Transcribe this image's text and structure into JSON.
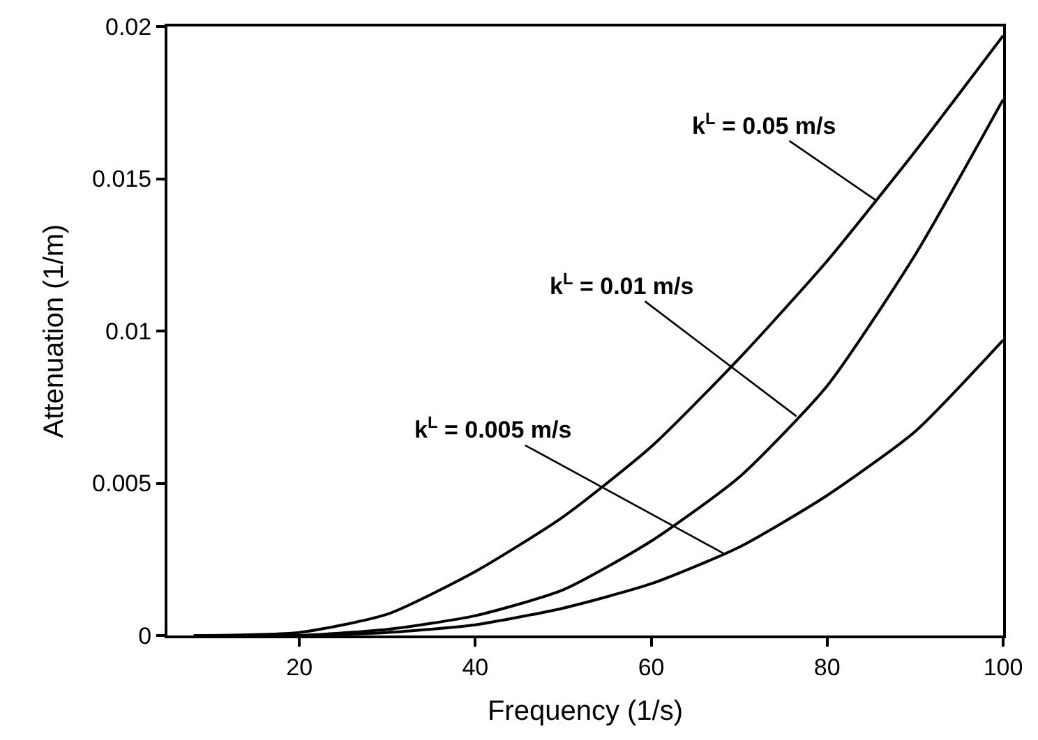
{
  "chart_data": {
    "type": "line",
    "xlabel": "Frequency (1/s)",
    "ylabel": "Attenuation (1/m)",
    "x": [
      8,
      20,
      30,
      40,
      50,
      60,
      70,
      80,
      90,
      100
    ],
    "series": [
      {
        "color": "#000000",
        "values": [
          0,
          0.0001,
          0.0007,
          0.0021,
          0.0039,
          0.0062,
          0.0091,
          0.0123,
          0.0159,
          0.0197
        ]
      },
      {
        "color": "#000000",
        "values": [
          0,
          0,
          0.0002,
          0.00065,
          0.0015,
          0.0031,
          0.0052,
          0.0082,
          0.0125,
          0.0176
        ]
      },
      {
        "color": "#000000",
        "values": [
          0,
          0,
          0.0001,
          0.00035,
          0.0009,
          0.0017,
          0.0029,
          0.0046,
          0.0067,
          0.0097
        ]
      }
    ],
    "annotations": [
      {
        "text": "k$^{L}$ = 0.05 m/s",
        "x": 85.5,
        "y": 0.0143
      },
      {
        "text": "k$^{L}$ = 0.01 m/s",
        "x": 76.5,
        "y": 0.0072
      },
      {
        "text": "k$^{L}$ = 0.005 m/s",
        "x": 68.2,
        "y": 0.0027
      }
    ],
    "xlim": [
      5,
      100
    ],
    "xticks": [
      20,
      40,
      60,
      80,
      100
    ],
    "ylim": [
      0,
      0.02
    ],
    "yticks": [
      0,
      0.005,
      0.01,
      0.015,
      0.02
    ],
    "marker": "none",
    "line_style": "solid"
  }
}
